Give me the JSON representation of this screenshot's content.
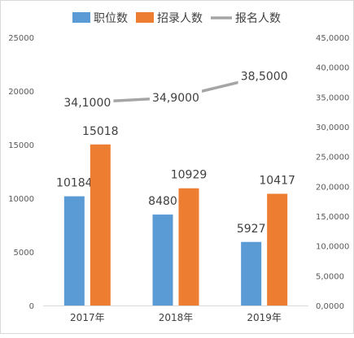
{
  "chart_data": {
    "type": "bar",
    "categories": [
      "2017年",
      "2018年",
      "2019年"
    ],
    "series": [
      {
        "name": "职位数",
        "kind": "bar",
        "axis": "left",
        "color": "#5b9bd5",
        "values": [
          10184,
          8480,
          5927
        ],
        "labels": [
          "10184",
          "8480",
          "5927"
        ]
      },
      {
        "name": "招录人数",
        "kind": "bar",
        "axis": "left",
        "color": "#ed7d31",
        "values": [
          15018,
          10929,
          10417
        ],
        "labels": [
          "15018",
          "10929",
          "10417"
        ]
      },
      {
        "name": "报名人数",
        "kind": "line",
        "axis": "right",
        "color": "#a5a5a5",
        "values": [
          34100,
          34900,
          38500
        ],
        "labels": [
          "34,1000",
          "34,9000",
          "38,5000"
        ]
      }
    ],
    "left_axis": {
      "ylim": [
        0,
        25000
      ],
      "ticks": [
        "0",
        "5000",
        "10000",
        "15000",
        "20000",
        "25000"
      ]
    },
    "right_axis": {
      "ylim": [
        0,
        45000
      ],
      "ticks": [
        "0,0000",
        "5,0000",
        "10,0000",
        "15,0000",
        "20,0000",
        "25,0000",
        "30,0000",
        "35,0000",
        "40,0000",
        "45,0000"
      ]
    },
    "legend_position": "top",
    "grid": false
  }
}
